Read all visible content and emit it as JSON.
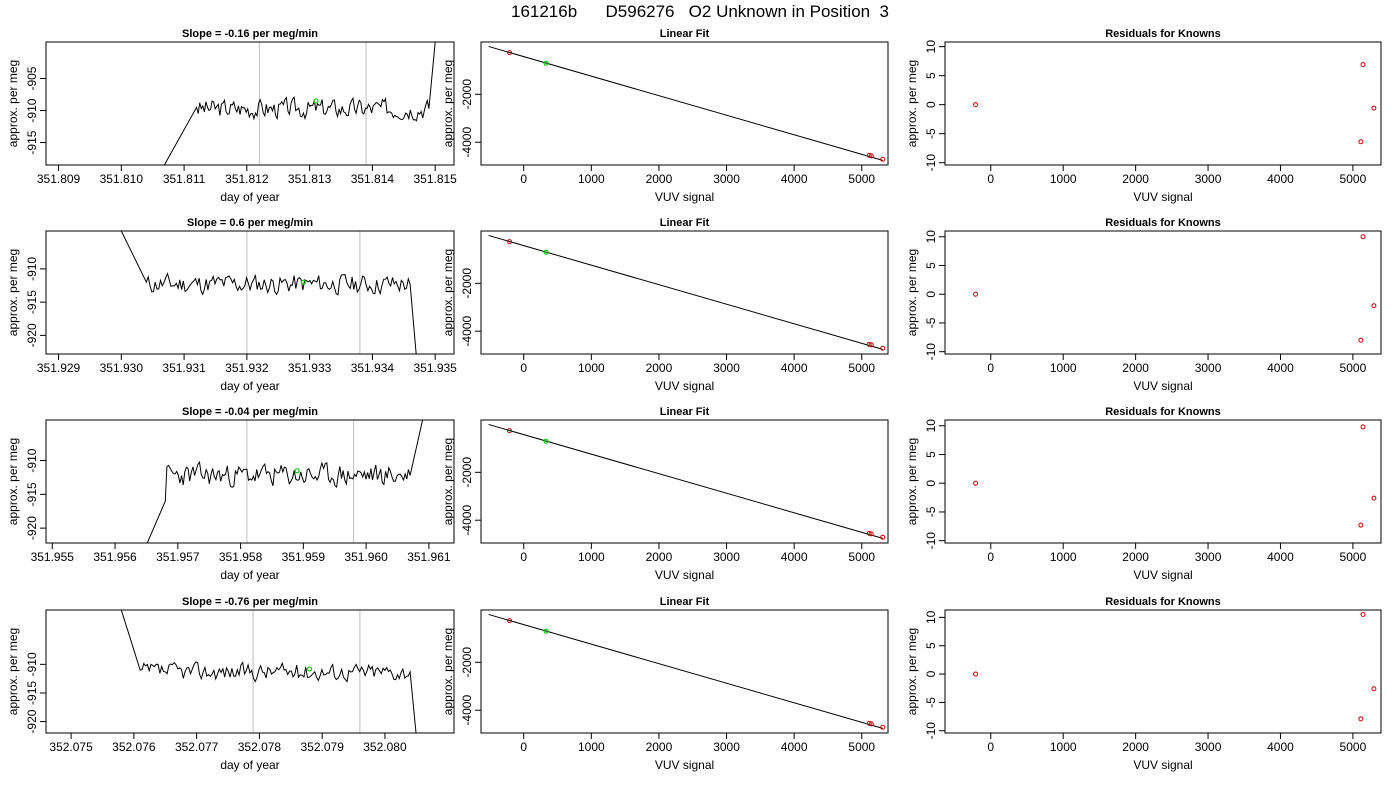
{
  "title": "161216b      D596276   O2 Unknown in Position  3",
  "colors": {
    "series": "#000000",
    "highlight": "#00cc00",
    "known_points": "#cc0000",
    "vline": "#c8c8c8"
  },
  "chart_data": [
    {
      "type": "line",
      "title": "Slope =  -0.16  per meg/min",
      "xlabel": "day of year",
      "ylabel": "approx. per meg",
      "xlim": [
        351.8088,
        351.8153
      ],
      "ylim": [
        -918.5,
        -899.3
      ],
      "xticks": [
        "351.809",
        "351.810",
        "351.811",
        "351.812",
        "351.813",
        "351.814",
        "351.815"
      ],
      "xtick_values": [
        351.809,
        351.81,
        351.811,
        351.812,
        351.813,
        351.814,
        351.815
      ],
      "yticks": [
        "-905",
        "-910",
        "-915"
      ],
      "ytick_values": [
        -905,
        -910,
        -915
      ],
      "vlines": [
        351.8122,
        351.8139
      ],
      "highlight": {
        "x": 351.8131,
        "y": -908.5
      },
      "noise_center": -909.7,
      "noise_amplitude": 2.1,
      "seed": 3,
      "start_x": 351.8106,
      "start_y": -920,
      "end_x": 351.815,
      "end_y": -899.3,
      "rise_end_x": 351.8112,
      "rise_end_y": -909.5,
      "fall_start_x": 351.8149
    },
    {
      "type": "line",
      "title": "Linear Fit",
      "xlabel": "VUV signal",
      "ylabel": "approx. per meg",
      "xlim": [
        -632,
        5388
      ],
      "ylim": [
        -4952,
        185
      ],
      "xticks": [
        "0",
        "1000",
        "2000",
        "3000",
        "4000",
        "5000"
      ],
      "xtick_values": [
        0,
        1000,
        2000,
        3000,
        4000,
        5000
      ],
      "yticks": [
        "-2000",
        "-4000"
      ],
      "ytick_values": [
        -2000,
        -4000
      ],
      "fit_line": [
        [
          -520,
          0
        ],
        [
          5310,
          -4760
        ]
      ],
      "points": [
        [
          -210,
          -259
        ],
        [
          5110,
          -4548
        ],
        [
          5140,
          -4572
        ],
        [
          5310,
          -4713
        ]
      ],
      "highlight": {
        "x": 330,
        "y": -700
      }
    },
    {
      "type": "scatter",
      "title": "Residuals for Knowns",
      "xlabel": "VUV signal",
      "ylabel": "approx. per meg",
      "xlim": [
        -632,
        5388
      ],
      "ylim": [
        -10.4,
        10.8
      ],
      "xticks": [
        "0",
        "1000",
        "2000",
        "3000",
        "4000",
        "5000"
      ],
      "xtick_values": [
        0,
        1000,
        2000,
        3000,
        4000,
        5000
      ],
      "yticks": [
        "-10",
        "-5",
        "0",
        "5",
        "10"
      ],
      "ytick_values": [
        -10,
        -5,
        0,
        5,
        10
      ],
      "points": [
        [
          -210,
          0.0
        ],
        [
          5110,
          -6.4
        ],
        [
          5140,
          6.9
        ],
        [
          5290,
          -0.6
        ]
      ]
    },
    {
      "type": "line",
      "title": "Slope =  0.6  per meg/min",
      "xlabel": "day of year",
      "ylabel": "approx. per meg",
      "xlim": [
        351.9288,
        351.9353
      ],
      "ylim": [
        -922.8,
        -904.3
      ],
      "xticks": [
        "351.929",
        "351.930",
        "351.931",
        "351.932",
        "351.933",
        "351.934",
        "351.935"
      ],
      "xtick_values": [
        351.929,
        351.93,
        351.931,
        351.932,
        351.933,
        351.934,
        351.935
      ],
      "yticks": [
        "-910",
        "-915",
        "-920"
      ],
      "ytick_values": [
        -910,
        -915,
        -920
      ],
      "vlines": [
        351.932,
        351.9338
      ],
      "highlight": {
        "x": 351.9329,
        "y": -912.0
      },
      "noise_center": -912.3,
      "noise_amplitude": 2.1,
      "seed": 11,
      "start_x": 351.93,
      "start_y": -904.3,
      "end_x": 351.9347,
      "end_y": -923,
      "rise_end_x": 351.9304,
      "rise_end_y": -912,
      "fall_start_x": 351.9346
    },
    {
      "type": "line",
      "title": "Linear Fit",
      "xlabel": "VUV signal",
      "ylabel": "approx. per meg",
      "xlim": [
        -632,
        5388
      ],
      "ylim": [
        -4952,
        185
      ],
      "xticks": [
        "0",
        "1000",
        "2000",
        "3000",
        "4000",
        "5000"
      ],
      "xtick_values": [
        0,
        1000,
        2000,
        3000,
        4000,
        5000
      ],
      "yticks": [
        "-2000",
        "-4000"
      ],
      "ytick_values": [
        -2000,
        -4000
      ],
      "fit_line": [
        [
          -520,
          0
        ],
        [
          5310,
          -4760
        ]
      ],
      "points": [
        [
          -210,
          -259
        ],
        [
          5110,
          -4548
        ],
        [
          5140,
          -4572
        ],
        [
          5310,
          -4713
        ]
      ],
      "highlight": {
        "x": 330,
        "y": -700
      }
    },
    {
      "type": "scatter",
      "title": "Residuals for Knowns",
      "xlabel": "VUV signal",
      "ylabel": "approx. per meg",
      "xlim": [
        -632,
        5388
      ],
      "ylim": [
        -10.4,
        11.0
      ],
      "xticks": [
        "0",
        "1000",
        "2000",
        "3000",
        "4000",
        "5000"
      ],
      "xtick_values": [
        0,
        1000,
        2000,
        3000,
        4000,
        5000
      ],
      "yticks": [
        "-10",
        "-5",
        "0",
        "5",
        "10"
      ],
      "ytick_values": [
        -10,
        -5,
        0,
        5,
        10
      ],
      "points": [
        [
          -210,
          0.0
        ],
        [
          5110,
          -8.0
        ],
        [
          5140,
          10.0
        ],
        [
          5290,
          -2.0
        ]
      ]
    },
    {
      "type": "line",
      "title": "Slope =  -0.04  per meg/min",
      "xlabel": "day of year",
      "ylabel": "approx. per meg",
      "xlim": [
        351.9549,
        351.9614
      ],
      "ylim": [
        -922.2,
        -904.0
      ],
      "xticks": [
        "351.955",
        "351.956",
        "351.957",
        "351.958",
        "351.959",
        "351.960",
        "351.961"
      ],
      "xtick_values": [
        351.955,
        351.956,
        351.957,
        351.958,
        351.959,
        351.96,
        351.961
      ],
      "yticks": [
        "-910",
        "-915",
        "-920"
      ],
      "ytick_values": [
        -910,
        -915,
        -920
      ],
      "vlines": [
        351.9581,
        351.9598
      ],
      "highlight": {
        "x": 351.9589,
        "y": -911.5
      },
      "noise_center": -912.2,
      "noise_amplitude": 2.3,
      "seed": 23,
      "start_x": 351.9565,
      "start_y": -922.5,
      "end_x": 351.9609,
      "end_y": -904.0,
      "rise_end_x": 351.9568,
      "rise_end_y": -916,
      "fall_start_x": 351.9607
    },
    {
      "type": "line",
      "title": "Linear Fit",
      "xlabel": "VUV signal",
      "ylabel": "approx. per meg",
      "xlim": [
        -632,
        5388
      ],
      "ylim": [
        -4952,
        185
      ],
      "xticks": [
        "0",
        "1000",
        "2000",
        "3000",
        "4000",
        "5000"
      ],
      "xtick_values": [
        0,
        1000,
        2000,
        3000,
        4000,
        5000
      ],
      "yticks": [
        "-2000",
        "-4000"
      ],
      "ytick_values": [
        -2000,
        -4000
      ],
      "fit_line": [
        [
          -520,
          0
        ],
        [
          5310,
          -4760
        ]
      ],
      "points": [
        [
          -210,
          -259
        ],
        [
          5110,
          -4548
        ],
        [
          5140,
          -4572
        ],
        [
          5310,
          -4713
        ]
      ],
      "highlight": {
        "x": 330,
        "y": -700
      }
    },
    {
      "type": "scatter",
      "title": "Residuals for Knowns",
      "xlabel": "VUV signal",
      "ylabel": "approx. per meg",
      "xlim": [
        -632,
        5388
      ],
      "ylim": [
        -10.4,
        11.0
      ],
      "xticks": [
        "0",
        "1000",
        "2000",
        "3000",
        "4000",
        "5000"
      ],
      "xtick_values": [
        0,
        1000,
        2000,
        3000,
        4000,
        5000
      ],
      "yticks": [
        "-10",
        "-5",
        "0",
        "5",
        "10"
      ],
      "ytick_values": [
        -10,
        -5,
        0,
        5,
        10
      ],
      "points": [
        [
          -210,
          0.0
        ],
        [
          5110,
          -7.3
        ],
        [
          5140,
          9.8
        ],
        [
          5290,
          -2.6
        ]
      ]
    },
    {
      "type": "line",
      "title": "Slope =  -0.76  per meg/min",
      "xlabel": "day of year",
      "ylabel": "approx. per meg",
      "xlim": [
        352.0746,
        352.0811
      ],
      "ylim": [
        -922.0,
        -900.5
      ],
      "xticks": [
        "352.075",
        "352.076",
        "352.077",
        "352.078",
        "352.079",
        "352.080"
      ],
      "xtick_values": [
        352.075,
        352.076,
        352.077,
        352.078,
        352.079,
        352.08
      ],
      "yticks": [
        "-910",
        "-915",
        "-920"
      ],
      "ytick_values": [
        -910,
        -915,
        -920
      ],
      "vlines": [
        352.0779,
        352.0796
      ],
      "highlight": {
        "x": 352.0788,
        "y": -910.8
      },
      "noise_center": -911.3,
      "noise_amplitude": 2.1,
      "seed": 37,
      "start_x": 352.0758,
      "start_y": -900.5,
      "end_x": 352.0805,
      "end_y": -922.5,
      "rise_end_x": 352.0761,
      "rise_end_y": -911,
      "fall_start_x": 352.0804
    },
    {
      "type": "line",
      "title": "Linear Fit",
      "xlabel": "VUV signal",
      "ylabel": "approx. per meg",
      "xlim": [
        -632,
        5388
      ],
      "ylim": [
        -4952,
        185
      ],
      "xticks": [
        "0",
        "1000",
        "2000",
        "3000",
        "4000",
        "5000"
      ],
      "xtick_values": [
        0,
        1000,
        2000,
        3000,
        4000,
        5000
      ],
      "yticks": [
        "-2000",
        "-4000"
      ],
      "ytick_values": [
        -2000,
        -4000
      ],
      "fit_line": [
        [
          -520,
          0
        ],
        [
          5310,
          -4760
        ]
      ],
      "points": [
        [
          -210,
          -259
        ],
        [
          5110,
          -4548
        ],
        [
          5140,
          -4572
        ],
        [
          5310,
          -4713
        ]
      ],
      "highlight": {
        "x": 330,
        "y": -700
      }
    },
    {
      "type": "scatter",
      "title": "Residuals for Knowns",
      "xlabel": "VUV signal",
      "ylabel": "approx. per meg",
      "xlim": [
        -632,
        5388
      ],
      "ylim": [
        -10.4,
        11.3
      ],
      "xticks": [
        "0",
        "1000",
        "2000",
        "3000",
        "4000",
        "5000"
      ],
      "xtick_values": [
        0,
        1000,
        2000,
        3000,
        4000,
        5000
      ],
      "yticks": [
        "-10",
        "-5",
        "0",
        "5",
        "10"
      ],
      "ytick_values": [
        -10,
        -5,
        0,
        5,
        10
      ],
      "points": [
        [
          -210,
          0.0
        ],
        [
          5110,
          -7.9
        ],
        [
          5140,
          10.5
        ],
        [
          5290,
          -2.6
        ]
      ]
    }
  ]
}
